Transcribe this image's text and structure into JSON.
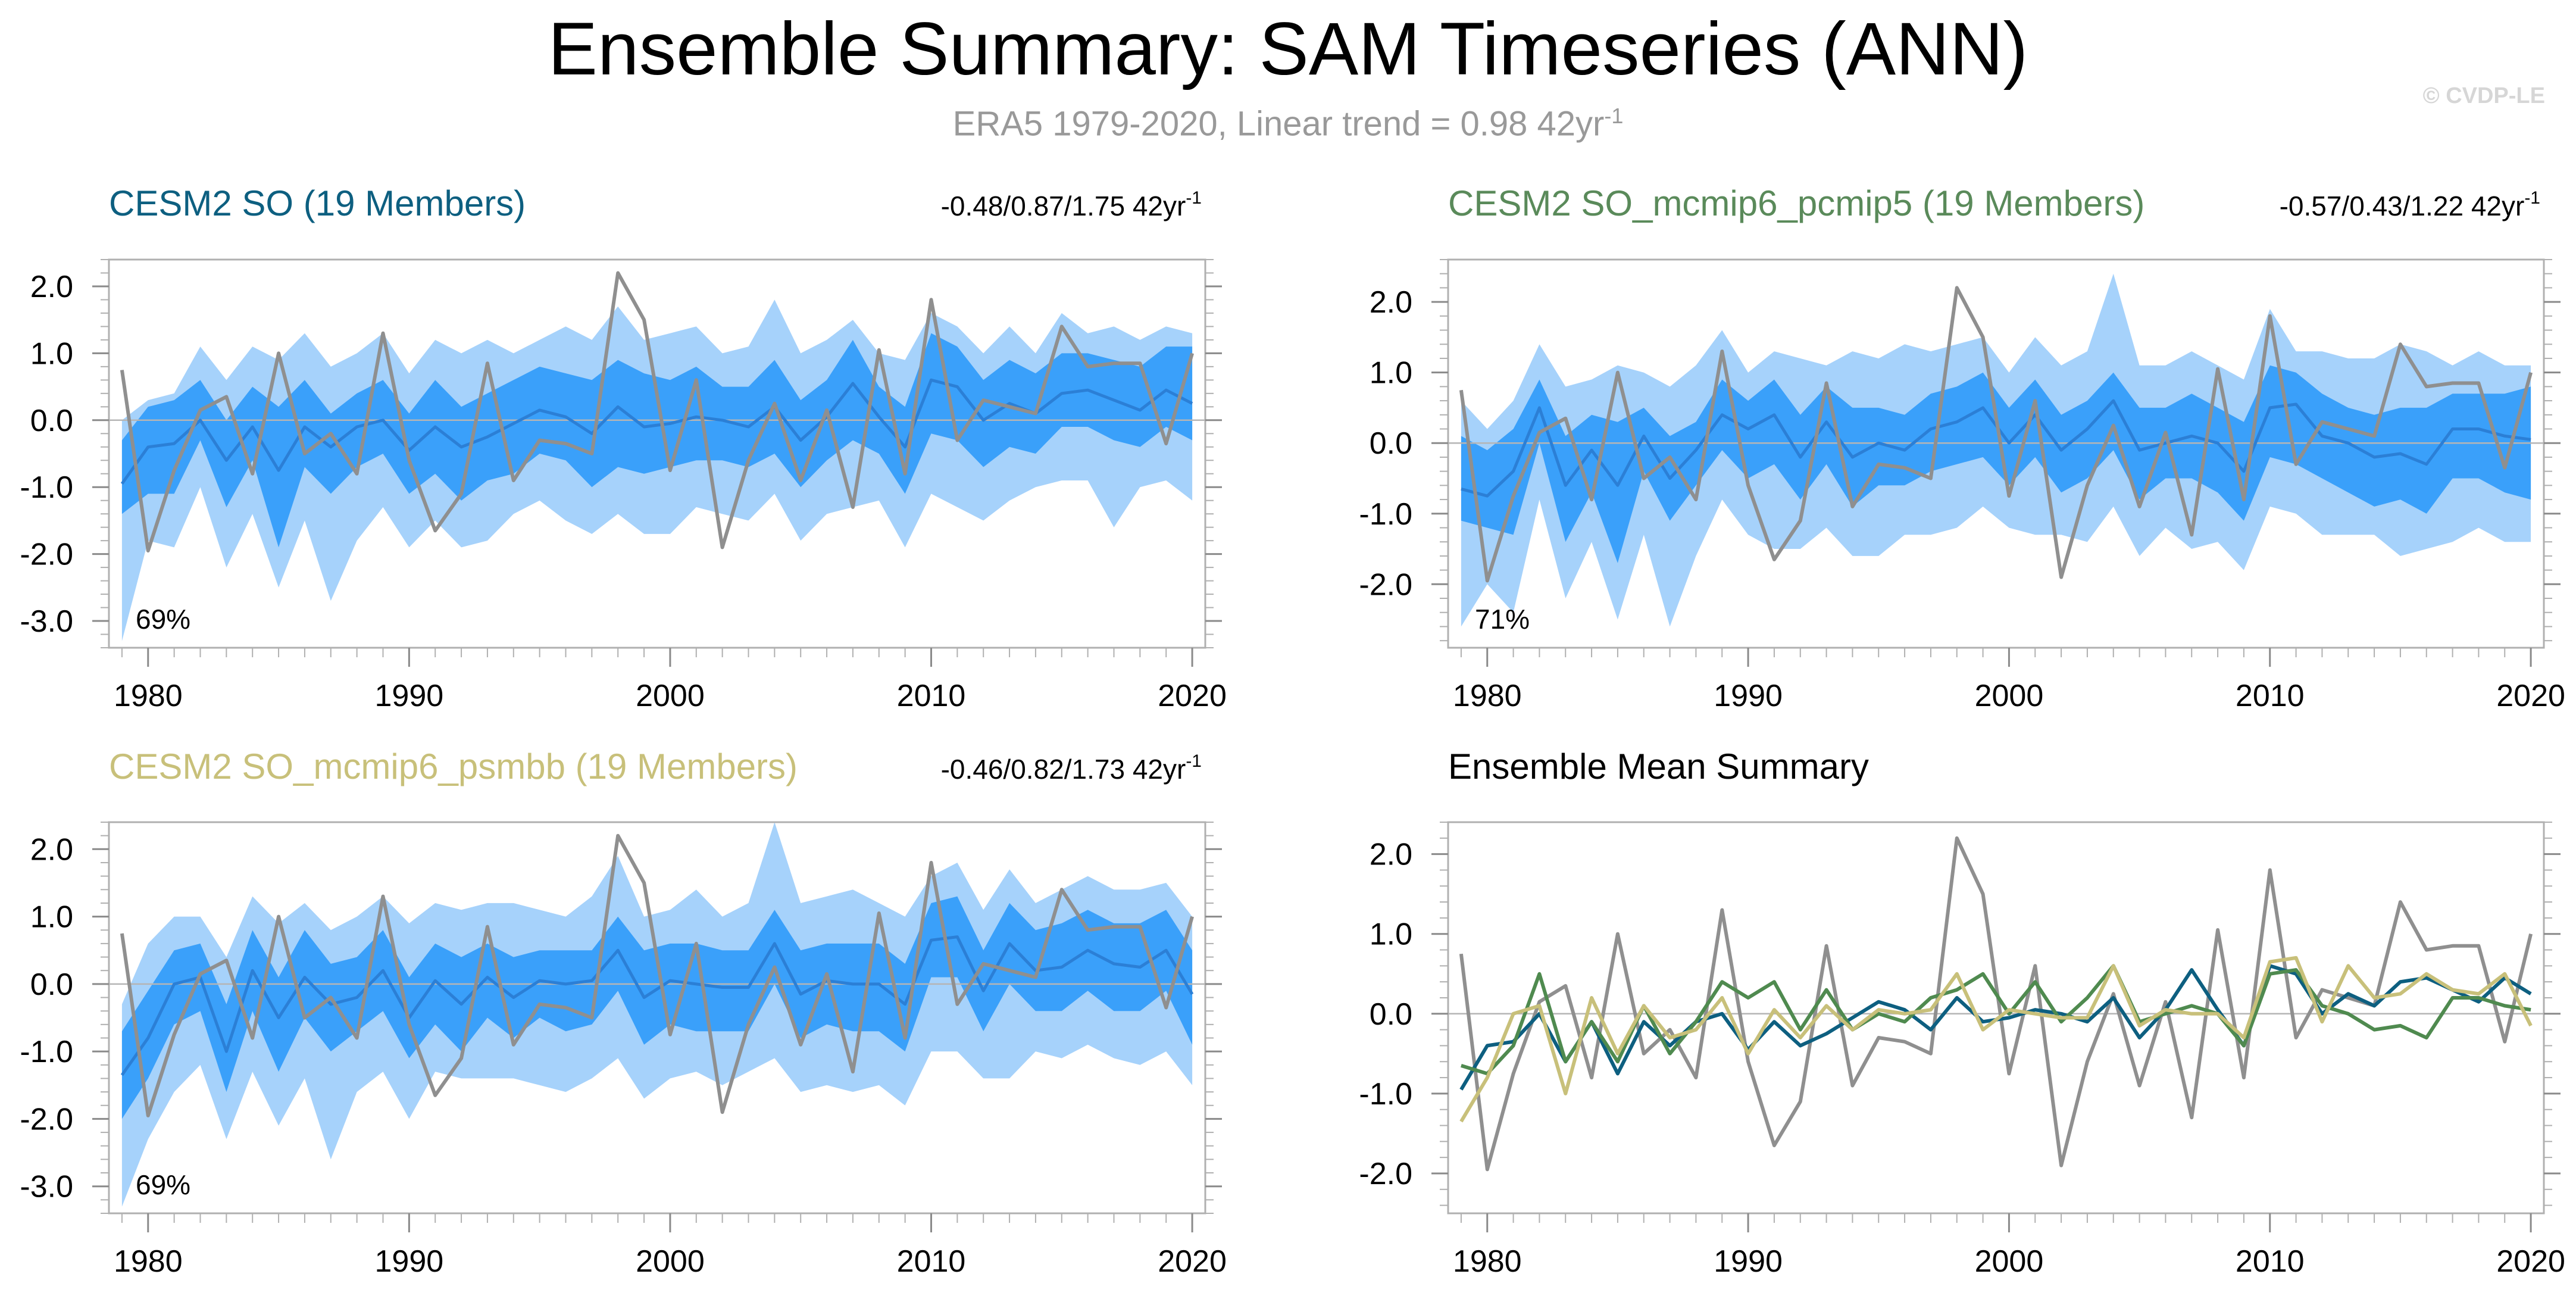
{
  "header": {
    "title": "Ensemble Summary: SAM Timeseries (ANN)",
    "subtitle_main": "ERA5 1979-2020, Linear trend = 0.98 42yr",
    "subtitle_exp": "-1",
    "watermark": "© CVDP-LE"
  },
  "colors": {
    "cesm2_so": "#0d5f80",
    "mcmip6_pcmip5": "#4f8a4f",
    "mcmip6_psmbb": "#c8c07a",
    "obs": "#8f8f8f",
    "band_outer": "#a6d2fb",
    "band_inner": "#3aa0fa",
    "ens_mean": "#2b7fd6"
  },
  "chart_data": [
    {
      "type": "area",
      "title": "CESM2 SO (19 Members)",
      "title_color": "#0d5f80",
      "trend_label": "-0.48/0.87/1.75 42yr",
      "trend_exp": "-1",
      "pct_label": "69%",
      "ylim": [
        -3.4,
        2.4
      ],
      "yticks": [
        -3.0,
        -2.0,
        -1.0,
        0.0,
        1.0,
        2.0
      ],
      "ytick_labels": [
        "-3.0",
        "-2.0",
        "-1.0",
        "0.0",
        "1.0",
        "2.0"
      ],
      "xlim": [
        1978.5,
        2020.5
      ],
      "xticks": [
        1980,
        1990,
        2000,
        2010,
        2020
      ],
      "xtick_labels": [
        "1980",
        "1990",
        "2000",
        "2010",
        "2020"
      ],
      "x_start": 1979,
      "obs": [
        0.75,
        -1.95,
        -0.75,
        0.15,
        0.35,
        -0.8,
        1.0,
        -0.5,
        -0.2,
        -0.8,
        1.3,
        -0.6,
        -1.65,
        -1.1,
        0.85,
        -0.9,
        -0.3,
        -0.35,
        -0.5,
        2.2,
        1.5,
        -0.75,
        0.6,
        -1.9,
        -0.6,
        0.25,
        -0.9,
        0.15,
        -1.3,
        1.05,
        -0.8,
        1.8,
        -0.3,
        0.3,
        0.2,
        0.1,
        1.4,
        0.8,
        0.85,
        0.85,
        -0.35,
        1.0
      ],
      "ens_mean": [
        -0.95,
        -0.4,
        -0.35,
        0.0,
        -0.6,
        -0.1,
        -0.75,
        -0.1,
        -0.4,
        -0.1,
        0.0,
        -0.45,
        -0.1,
        -0.4,
        -0.25,
        -0.05,
        0.15,
        0.05,
        -0.2,
        0.2,
        -0.1,
        -0.05,
        0.05,
        0.0,
        -0.1,
        0.2,
        -0.3,
        0.05,
        0.55,
        0.05,
        -0.4,
        0.6,
        0.5,
        0.0,
        0.25,
        0.1,
        0.4,
        0.45,
        0.3,
        0.15,
        0.45,
        0.25
      ],
      "inner_low": [
        -1.4,
        -1.1,
        -1.1,
        -0.3,
        -1.3,
        -0.6,
        -1.9,
        -0.7,
        -1.1,
        -0.7,
        -0.5,
        -1.1,
        -0.8,
        -1.2,
        -0.9,
        -0.8,
        -0.5,
        -0.6,
        -1.0,
        -0.7,
        -0.8,
        -0.7,
        -0.6,
        -0.6,
        -0.7,
        -0.5,
        -1.0,
        -0.6,
        -0.3,
        -0.5,
        -1.1,
        -0.2,
        -0.3,
        -0.7,
        -0.4,
        -0.5,
        -0.1,
        -0.1,
        -0.3,
        -0.4,
        -0.1,
        -0.3
      ],
      "inner_high": [
        -0.3,
        0.2,
        0.3,
        0.6,
        0.0,
        0.5,
        0.2,
        0.6,
        0.1,
        0.4,
        0.6,
        0.1,
        0.6,
        0.2,
        0.4,
        0.6,
        0.8,
        0.7,
        0.6,
        0.9,
        0.7,
        0.6,
        0.8,
        0.5,
        0.5,
        0.9,
        0.3,
        0.6,
        1.2,
        0.5,
        0.2,
        1.3,
        1.1,
        0.6,
        0.9,
        0.7,
        1.0,
        1.0,
        0.9,
        0.8,
        1.1,
        1.1
      ],
      "outer_low": [
        -3.3,
        -1.8,
        -1.9,
        -1.0,
        -2.2,
        -1.4,
        -2.5,
        -1.5,
        -2.7,
        -1.8,
        -1.3,
        -1.9,
        -1.5,
        -1.9,
        -1.8,
        -1.4,
        -1.2,
        -1.5,
        -1.7,
        -1.4,
        -1.7,
        -1.7,
        -1.3,
        -1.4,
        -1.5,
        -1.1,
        -1.8,
        -1.4,
        -1.3,
        -1.2,
        -1.9,
        -1.1,
        -1.3,
        -1.5,
        -1.2,
        -1.0,
        -0.9,
        -0.9,
        -1.6,
        -1.0,
        -0.9,
        -1.2
      ],
      "outer_high": [
        0.0,
        0.3,
        0.4,
        1.1,
        0.6,
        1.1,
        0.9,
        1.3,
        0.8,
        1.0,
        1.3,
        0.7,
        1.2,
        1.0,
        1.2,
        1.0,
        1.2,
        1.4,
        1.2,
        1.7,
        1.2,
        1.3,
        1.4,
        1.0,
        1.1,
        1.8,
        1.0,
        1.2,
        1.5,
        1.0,
        0.9,
        1.6,
        1.4,
        1.0,
        1.4,
        1.0,
        1.6,
        1.3,
        1.4,
        1.2,
        1.4,
        1.3
      ]
    },
    {
      "type": "area",
      "title": "CESM2 SO_mcmip6_pcmip5 (19 Members)",
      "title_color": "#5a8a5a",
      "trend_label": "-0.57/0.43/1.22 42yr",
      "trend_exp": "-1",
      "pct_label": "71%",
      "ylim": [
        -2.9,
        2.6
      ],
      "yticks": [
        -2.0,
        -1.0,
        0.0,
        1.0,
        2.0
      ],
      "ytick_labels": [
        "-2.0",
        "-1.0",
        "0.0",
        "1.0",
        "2.0"
      ],
      "xlim": [
        1978.5,
        2020.5
      ],
      "xticks": [
        1980,
        1990,
        2000,
        2010,
        2020
      ],
      "xtick_labels": [
        "1980",
        "1990",
        "2000",
        "2010",
        "2020"
      ],
      "x_start": 1979,
      "obs": [
        0.75,
        -1.95,
        -0.75,
        0.15,
        0.35,
        -0.8,
        1.0,
        -0.5,
        -0.2,
        -0.8,
        1.3,
        -0.6,
        -1.65,
        -1.1,
        0.85,
        -0.9,
        -0.3,
        -0.35,
        -0.5,
        2.2,
        1.5,
        -0.75,
        0.6,
        -1.9,
        -0.6,
        0.25,
        -0.9,
        0.15,
        -1.3,
        1.05,
        -0.8,
        1.8,
        -0.3,
        0.3,
        0.2,
        0.1,
        1.4,
        0.8,
        0.85,
        0.85,
        -0.35,
        1.0
      ],
      "ens_mean": [
        -0.65,
        -0.75,
        -0.4,
        0.5,
        -0.6,
        -0.1,
        -0.6,
        0.1,
        -0.5,
        -0.1,
        0.4,
        0.2,
        0.4,
        -0.2,
        0.3,
        -0.2,
        0.0,
        -0.1,
        0.2,
        0.3,
        0.5,
        0.0,
        0.4,
        -0.1,
        0.2,
        0.6,
        -0.1,
        0.0,
        0.1,
        0.0,
        -0.4,
        0.5,
        0.55,
        0.1,
        0.0,
        -0.2,
        -0.15,
        -0.3,
        0.2,
        0.2,
        0.1,
        0.05
      ],
      "inner_low": [
        -1.1,
        -1.2,
        -1.3,
        0.0,
        -1.4,
        -0.7,
        -1.7,
        -0.4,
        -1.1,
        -0.6,
        -0.1,
        -0.5,
        -0.3,
        -0.8,
        -0.3,
        -0.9,
        -0.6,
        -0.6,
        -0.4,
        -0.3,
        -0.2,
        -0.6,
        -0.2,
        -0.7,
        -0.5,
        -0.1,
        -0.8,
        -0.5,
        -0.5,
        -0.7,
        -1.1,
        -0.2,
        -0.3,
        -0.5,
        -0.7,
        -0.9,
        -0.8,
        -1.0,
        -0.5,
        -0.5,
        -0.7,
        -0.8
      ],
      "inner_high": [
        0.1,
        -0.1,
        0.2,
        0.9,
        0.1,
        0.4,
        0.3,
        0.5,
        0.1,
        0.3,
        0.9,
        0.6,
        0.9,
        0.4,
        0.8,
        0.5,
        0.5,
        0.4,
        0.7,
        0.8,
        1.0,
        0.5,
        0.9,
        0.4,
        0.6,
        1.0,
        0.5,
        0.5,
        0.7,
        0.5,
        0.3,
        1.1,
        1.0,
        0.7,
        0.5,
        0.4,
        0.5,
        0.5,
        0.7,
        0.7,
        0.7,
        0.8
      ],
      "outer_low": [
        -2.6,
        -2.0,
        -2.4,
        -0.8,
        -2.2,
        -1.4,
        -2.5,
        -1.3,
        -2.6,
        -1.6,
        -0.8,
        -1.3,
        -1.5,
        -1.5,
        -1.2,
        -1.6,
        -1.6,
        -1.3,
        -1.3,
        -1.2,
        -0.9,
        -1.2,
        -1.3,
        -1.3,
        -1.4,
        -0.9,
        -1.6,
        -1.2,
        -1.5,
        -1.4,
        -1.8,
        -0.9,
        -1.0,
        -1.3,
        -1.3,
        -1.3,
        -1.6,
        -1.5,
        -1.4,
        -1.2,
        -1.4,
        -1.4
      ],
      "outer_high": [
        0.6,
        0.2,
        0.6,
        1.4,
        0.8,
        0.9,
        1.1,
        1.0,
        0.8,
        1.1,
        1.6,
        1.0,
        1.3,
        1.2,
        1.1,
        1.3,
        1.2,
        1.4,
        1.3,
        1.4,
        1.5,
        1.0,
        1.5,
        1.1,
        1.3,
        2.4,
        1.1,
        1.1,
        1.3,
        1.1,
        0.9,
        1.9,
        1.3,
        1.3,
        1.2,
        1.2,
        1.4,
        1.3,
        1.1,
        1.3,
        1.1,
        1.1
      ]
    },
    {
      "type": "area",
      "title": "CESM2 SO_mcmip6_psmbb (19 Members)",
      "title_color": "#c8c07a",
      "trend_label": "-0.46/0.82/1.73 42yr",
      "trend_exp": "-1",
      "pct_label": "69%",
      "ylim": [
        -3.4,
        2.4
      ],
      "yticks": [
        -3.0,
        -2.0,
        -1.0,
        0.0,
        1.0,
        2.0
      ],
      "ytick_labels": [
        "-3.0",
        "-2.0",
        "-1.0",
        "0.0",
        "1.0",
        "2.0"
      ],
      "xlim": [
        1978.5,
        2020.5
      ],
      "xticks": [
        1980,
        1990,
        2000,
        2010,
        2020
      ],
      "xtick_labels": [
        "1980",
        "1990",
        "2000",
        "2010",
        "2020"
      ],
      "x_start": 1979,
      "obs": [
        0.75,
        -1.95,
        -0.75,
        0.15,
        0.35,
        -0.8,
        1.0,
        -0.5,
        -0.2,
        -0.8,
        1.3,
        -0.6,
        -1.65,
        -1.1,
        0.85,
        -0.9,
        -0.3,
        -0.35,
        -0.5,
        2.2,
        1.5,
        -0.75,
        0.6,
        -1.9,
        -0.6,
        0.25,
        -0.9,
        0.15,
        -1.3,
        1.05,
        -0.8,
        1.8,
        -0.3,
        0.3,
        0.2,
        0.1,
        1.4,
        0.8,
        0.85,
        0.85,
        -0.35,
        1.0
      ],
      "ens_mean": [
        -1.35,
        -0.8,
        0.0,
        0.1,
        -1.0,
        0.2,
        -0.5,
        0.1,
        -0.3,
        -0.2,
        0.2,
        -0.5,
        0.05,
        -0.3,
        0.1,
        -0.2,
        0.05,
        0.0,
        0.05,
        0.5,
        -0.2,
        0.05,
        0.0,
        -0.05,
        -0.05,
        0.6,
        -0.15,
        0.05,
        0.0,
        0.0,
        -0.3,
        0.65,
        0.7,
        -0.1,
        0.6,
        0.2,
        0.25,
        0.5,
        0.3,
        0.25,
        0.5,
        -0.15
      ],
      "inner_low": [
        -2.0,
        -1.4,
        -0.6,
        -0.4,
        -1.6,
        -0.4,
        -1.3,
        -0.5,
        -1.0,
        -0.7,
        -0.4,
        -1.1,
        -0.6,
        -1.0,
        -0.5,
        -0.8,
        -0.5,
        -0.7,
        -0.6,
        -0.1,
        -0.9,
        -0.6,
        -0.7,
        -0.7,
        -0.7,
        0.0,
        -0.8,
        -0.6,
        -0.7,
        -0.7,
        -1.0,
        0.1,
        0.1,
        -0.7,
        0.0,
        -0.4,
        -0.4,
        -0.1,
        -0.4,
        -0.4,
        -0.1,
        -0.9
      ],
      "inner_high": [
        -0.7,
        -0.1,
        0.5,
        0.6,
        -0.3,
        0.8,
        0.1,
        0.8,
        0.3,
        0.4,
        0.8,
        0.1,
        0.6,
        0.4,
        0.6,
        0.4,
        0.5,
        0.5,
        0.5,
        1.0,
        0.5,
        0.6,
        0.6,
        0.5,
        0.5,
        1.1,
        0.5,
        0.6,
        0.6,
        0.6,
        0.3,
        1.2,
        1.3,
        0.5,
        1.2,
        0.8,
        0.9,
        1.1,
        0.9,
        0.9,
        1.1,
        0.5
      ],
      "outer_low": [
        -3.3,
        -2.3,
        -1.6,
        -1.2,
        -2.3,
        -1.3,
        -2.1,
        -1.4,
        -2.6,
        -1.6,
        -1.3,
        -2.0,
        -1.3,
        -1.4,
        -1.4,
        -1.4,
        -1.5,
        -1.6,
        -1.4,
        -1.1,
        -1.7,
        -1.4,
        -1.3,
        -1.5,
        -1.3,
        -1.1,
        -1.6,
        -1.5,
        -1.6,
        -1.5,
        -1.8,
        -1.0,
        -1.0,
        -1.4,
        -1.4,
        -1.0,
        -1.1,
        -0.9,
        -1.1,
        -1.2,
        -1.0,
        -1.5
      ],
      "outer_high": [
        -0.3,
        0.6,
        1.0,
        1.0,
        0.4,
        1.3,
        0.9,
        1.2,
        0.8,
        1.0,
        1.3,
        0.9,
        1.2,
        1.1,
        1.2,
        1.2,
        1.1,
        1.0,
        1.3,
        1.9,
        1.0,
        1.1,
        1.4,
        1.0,
        1.2,
        2.4,
        1.2,
        1.3,
        1.4,
        1.2,
        1.0,
        1.6,
        1.8,
        1.1,
        1.7,
        1.2,
        1.4,
        1.6,
        1.4,
        1.4,
        1.5,
        1.0
      ]
    },
    {
      "type": "line",
      "title": "Ensemble Mean Summary",
      "title_color": "#000000",
      "ylim": [
        -2.5,
        2.4
      ],
      "yticks": [
        -2.0,
        -1.0,
        0.0,
        1.0,
        2.0
      ],
      "ytick_labels": [
        "-2.0",
        "-1.0",
        "0.0",
        "1.0",
        "2.0"
      ],
      "xlim": [
        1978.5,
        2020.5
      ],
      "xticks": [
        1980,
        1990,
        2000,
        2010,
        2020
      ],
      "xtick_labels": [
        "1980",
        "1990",
        "2000",
        "2010",
        "2020"
      ],
      "x_start": 1979,
      "series": [
        {
          "name": "ERA5",
          "color": "#8f8f8f",
          "values": [
            0.75,
            -1.95,
            -0.75,
            0.15,
            0.35,
            -0.8,
            1.0,
            -0.5,
            -0.2,
            -0.8,
            1.3,
            -0.6,
            -1.65,
            -1.1,
            0.85,
            -0.9,
            -0.3,
            -0.35,
            -0.5,
            2.2,
            1.5,
            -0.75,
            0.6,
            -1.9,
            -0.6,
            0.25,
            -0.9,
            0.15,
            -1.3,
            1.05,
            -0.8,
            1.8,
            -0.3,
            0.3,
            0.2,
            0.1,
            1.4,
            0.8,
            0.85,
            0.85,
            -0.35,
            1.0
          ]
        },
        {
          "name": "CESM2 SO",
          "color": "#0d5f80",
          "values": [
            -0.95,
            -0.4,
            -0.35,
            0.0,
            -0.6,
            -0.1,
            -0.75,
            -0.1,
            -0.4,
            -0.1,
            0.0,
            -0.45,
            -0.1,
            -0.4,
            -0.25,
            -0.05,
            0.15,
            0.05,
            -0.2,
            0.2,
            -0.1,
            -0.05,
            0.05,
            0.0,
            -0.1,
            0.2,
            -0.3,
            0.05,
            0.55,
            0.05,
            -0.4,
            0.6,
            0.5,
            0.0,
            0.25,
            0.1,
            0.4,
            0.45,
            0.3,
            0.15,
            0.45,
            0.25
          ]
        },
        {
          "name": "CESM2 SO_mcmip6_pcmip5",
          "color": "#4f8a4f",
          "values": [
            -0.65,
            -0.75,
            -0.4,
            0.5,
            -0.6,
            -0.1,
            -0.6,
            0.1,
            -0.5,
            -0.1,
            0.4,
            0.2,
            0.4,
            -0.2,
            0.3,
            -0.2,
            0.0,
            -0.1,
            0.2,
            0.3,
            0.5,
            0.0,
            0.4,
            -0.1,
            0.2,
            0.6,
            -0.1,
            0.0,
            0.1,
            0.0,
            -0.4,
            0.5,
            0.55,
            0.1,
            0.0,
            -0.2,
            -0.15,
            -0.3,
            0.2,
            0.2,
            0.1,
            0.05
          ]
        },
        {
          "name": "CESM2 SO_mcmip6_psmbb",
          "color": "#c8c07a",
          "values": [
            -1.35,
            -0.8,
            0.0,
            0.1,
            -1.0,
            0.2,
            -0.5,
            0.1,
            -0.3,
            -0.2,
            0.2,
            -0.5,
            0.05,
            -0.3,
            0.1,
            -0.2,
            0.05,
            0.0,
            0.05,
            0.5,
            -0.2,
            0.05,
            0.0,
            -0.05,
            -0.05,
            0.6,
            -0.15,
            0.05,
            0.0,
            0.0,
            -0.3,
            0.65,
            0.7,
            -0.1,
            0.6,
            0.2,
            0.25,
            0.5,
            0.3,
            0.25,
            0.5,
            -0.15
          ]
        }
      ]
    }
  ]
}
